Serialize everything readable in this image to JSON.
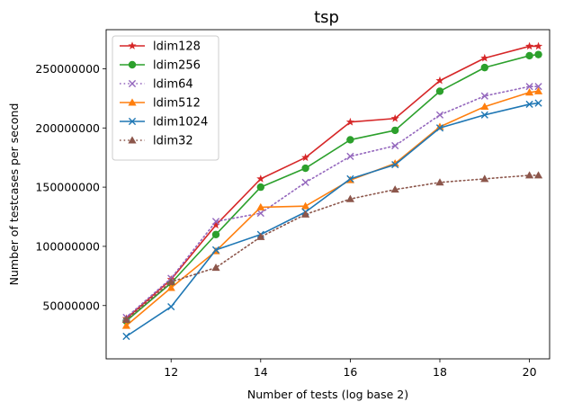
{
  "chart_data": {
    "type": "line",
    "title": "tsp",
    "xlabel": "Number of tests (log base 2)",
    "ylabel": "Number of testcases per second",
    "xlim": [
      10.55,
      20.45
    ],
    "ylim": [
      5000000,
      283000000
    ],
    "xticks": [
      12,
      14,
      16,
      18,
      20
    ],
    "yticks": [
      50000000,
      100000000,
      150000000,
      200000000,
      250000000
    ],
    "xtick_labels": [
      "12",
      "14",
      "16",
      "18",
      "20"
    ],
    "ytick_labels": [
      "50000000",
      "100000000",
      "150000000",
      "200000000",
      "250000000"
    ],
    "grid": false,
    "legend_position": "upper left",
    "series": [
      {
        "name": "ldim128",
        "color": "#d62728",
        "marker": "star",
        "linestyle": "solid",
        "x": [
          11,
          12,
          13,
          14,
          15,
          16,
          17,
          18,
          19,
          20,
          20.2
        ],
        "y": [
          39000000,
          72000000,
          118000000,
          157000000,
          175000000,
          205000000,
          208000000,
          240000000,
          259000000,
          269000000,
          269000000
        ]
      },
      {
        "name": "ldim256",
        "color": "#2ca02c",
        "marker": "circle",
        "linestyle": "solid",
        "x": [
          11,
          12,
          13,
          14,
          15,
          16,
          17,
          18,
          19,
          20,
          20.2
        ],
        "y": [
          37000000,
          69000000,
          110000000,
          150000000,
          166000000,
          190000000,
          198000000,
          231000000,
          251000000,
          261000000,
          262000000
        ]
      },
      {
        "name": "ldim64",
        "color": "#9467bd",
        "marker": "x",
        "linestyle": "dotted",
        "x": [
          11,
          12,
          13,
          14,
          15,
          16,
          17,
          18,
          19,
          20,
          20.2
        ],
        "y": [
          40000000,
          73000000,
          121000000,
          128000000,
          154000000,
          176000000,
          185000000,
          211000000,
          227000000,
          235000000,
          235000000
        ]
      },
      {
        "name": "ldim512",
        "color": "#ff7f0e",
        "marker": "triangle",
        "linestyle": "solid",
        "x": [
          11,
          12,
          13,
          14,
          15,
          16,
          17,
          18,
          19,
          20,
          20.2
        ],
        "y": [
          33000000,
          65000000,
          96000000,
          133000000,
          134000000,
          156000000,
          170000000,
          201000000,
          218000000,
          230000000,
          231000000
        ]
      },
      {
        "name": "ldim1024",
        "color": "#1f77b4",
        "marker": "x",
        "linestyle": "solid",
        "x": [
          11,
          12,
          13,
          14,
          15,
          16,
          17,
          18,
          19,
          20,
          20.2
        ],
        "y": [
          24000000,
          49000000,
          97000000,
          110000000,
          129000000,
          157000000,
          169000000,
          200000000,
          211000000,
          220000000,
          221000000
        ]
      },
      {
        "name": "ldim32",
        "color": "#8c564b",
        "marker": "triangle",
        "linestyle": "dotted",
        "x": [
          11,
          12,
          13,
          14,
          15,
          16,
          17,
          18,
          19,
          20,
          20.2
        ],
        "y": [
          38000000,
          70000000,
          82000000,
          108000000,
          127000000,
          140000000,
          148000000,
          154000000,
          157000000,
          160000000,
          160000000
        ]
      }
    ]
  }
}
